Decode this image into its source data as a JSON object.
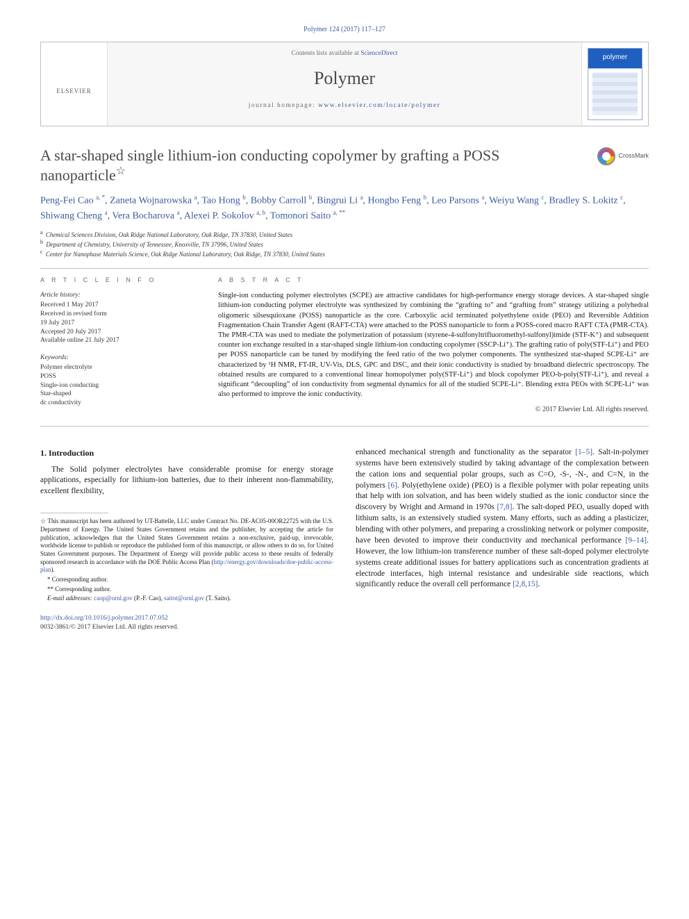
{
  "citation": "Polymer 124 (2017) 117–127",
  "masthead": {
    "contents_prefix": "Contents lists available at ",
    "contents_link": "ScienceDirect",
    "journal": "Polymer",
    "homepage_prefix": "journal homepage: ",
    "homepage_url": "www.elsevier.com/locate/polymer",
    "publisher_word": "ELSEVIER",
    "cover_word": "polymer"
  },
  "title": "A star-shaped single lithium-ion conducting copolymer by grafting a POSS nanoparticle",
  "title_star": "☆",
  "crossmark_label": "CrossMark",
  "authors_html": "Peng-Fei Cao <sup>a, *</sup>, Zaneta Wojnarowska <sup>a</sup>, Tao Hong <sup>b</sup>, Bobby Carroll <sup>b</sup>, Bingrui Li <sup>a</sup>, Hongbo Feng <sup>b</sup>, Leo Parsons <sup>a</sup>, Weiyu Wang <sup>c</sup>, Bradley S. Lokitz <sup>c</sup>, Shiwang Cheng <sup>a</sup>, Vera Bocharova <sup>a</sup>, Alexei P. Sokolov <sup>a, b</sup>, Tomonori Saito <sup>a, **</sup>",
  "affiliations": {
    "a": "Chemical Sciences Division, Oak Ridge National Laboratory, Oak Ridge, TN 37830, United States",
    "b": "Department of Chemistry, University of Tennessee, Knoxville, TN 37996, United States",
    "c": "Center for Nanophase Materials Science, Oak Ridge National Laboratory, Oak Ridge, TN 37830, United States"
  },
  "info_heading": "A R T I C L E   I N F O",
  "abs_heading": "A B S T R A C T",
  "history_label": "Article history:",
  "history": {
    "received": "Received 1 May 2017",
    "revised1": "Received in revised form",
    "revised2": "19 July 2017",
    "accepted": "Accepted 20 July 2017",
    "online": "Available online 21 July 2017"
  },
  "keywords_label": "Keywords:",
  "keywords": [
    "Polymer electrolyte",
    "POSS",
    "Single-ion conducting",
    "Star-shaped",
    "dc conductivity"
  ],
  "abstract": "Single-ion conducting polymer electrolytes (SCPE) are attractive candidates for high-performance energy storage devices. A star-shaped single lithium-ion conducting polymer electrolyte was synthesized by combining the “grafting to” and “grafting from” strategy utilizing a polyhedral oligomeric silsesquioxane (POSS) nanoparticle as the core. Carboxylic acid terminated polyethylene oxide (PEO) and Reversible Addition Fragmentation Chain Transfer Agent (RAFT-CTA) were attached to the POSS nanoparticle to form a POSS-cored macro RAFT CTA (PMR-CTA). The PMR-CTA was used to mediate the polymerization of potassium (styrene-4-sulfonyltrifluoromethyl-sulfonyl)imide (STF-K⁺) and subsequent counter ion exchange resulted in a star-shaped single lithium-ion conducting copolymer (SSCP-Li⁺). The grafting ratio of poly(STF-Li⁺) and PEO per POSS nanoparticle can be tuned by modifying the feed ratio of the two polymer components. The synthesized star-shaped SCPE-Li⁺ are characterized by ¹H NMR, FT-IR, UV-Vis, DLS, GPC and DSC, and their ionic conductivity is studied by broadband dielectric spectroscopy. The obtained results are compared to a conventional linear homopolymer poly(STF-Li⁺) and block copolymer PEO-b-poly(STF-Li⁺), and reveal a significant “decoupling” of ion conductivity from segmental dynamics for all of the studied SCPE-Li⁺. Blending extra PEOs with SCPE-Li⁺ was also performed to improve the ionic conductivity.",
  "copyright": "© 2017 Elsevier Ltd. All rights reserved.",
  "section1_head": "1. Introduction",
  "intro_left": "The Solid polymer electrolytes have considerable promise for energy storage applications, especially for lithium-ion batteries, due to their inherent non-flammability, excellent flexibility,",
  "intro_right_a": "enhanced mechanical strength and functionality as the separator ",
  "intro_right_ref1": "[1–5]",
  "intro_right_b": ". Salt-in-polymer systems have been extensively studied by taking advantage of the complexation between the cation ions and sequential polar groups, such as C=O, -S-, -N-, and C=N, in the polymers ",
  "intro_right_ref2": "[6]",
  "intro_right_c": ". Poly(ethylene oxide) (PEO) is a flexible polymer with polar repeating units that help with ion solvation, and has been widely studied as the ionic conductor since the discovery by Wright and Armand in 1970s ",
  "intro_right_ref3": "[7,8]",
  "intro_right_d": ". The salt-doped PEO, usually doped with lithium salts, is an extensively studied system. Many efforts, such as adding a plasticizer, blending with other polymers, and preparing a crosslinking network or polymer composite, have been devoted to improve their conductivity and mechanical performance ",
  "intro_right_ref4": "[9–14]",
  "intro_right_e": ". However, the low lithium-ion transference number of these salt-doped polymer electrolyte systems create additional issues for battery applications such as concentration gradients at electrode interfaces, high internal resistance and undesirable side reactions, which significantly reduce the overall cell performance ",
  "intro_right_ref5": "[2,8,15]",
  "intro_right_f": ".",
  "footnote_star": "☆ This manuscript has been authored by UT-Battelle, LLC under Contract No. DE-AC05-00OR22725 with the U.S. Department of Energy. The United States Government retains and the publisher, by accepting the article for publication, acknowledges that the United States Government retains a non-exclusive, paid-up, irrevocable, worldwide license to publish or reproduce the published form of this manuscript, or allow others to do so, for United States Government purposes. The Department of Energy will provide public access to these results of federally sponsored research in accordance with the DOE Public Access Plan (",
  "footnote_star_link": "http://energy.gov/downloads/doe-public-access-plan",
  "footnote_star_tail": ").",
  "corr1": "* Corresponding author.",
  "corr2": "** Corresponding author.",
  "emails_label": "E-mail addresses: ",
  "email1": "caop@ornl.gov",
  "email1_who": " (P.-F. Cao), ",
  "email2": "saitot@ornl.gov",
  "email2_who": " (T. Saito).",
  "doi_url": "http://dx.doi.org/10.1016/j.polymer.2017.07.052",
  "doi_line2": "0032-3861/© 2017 Elsevier Ltd. All rights reserved.",
  "colors": {
    "link": "#3a5ba0",
    "rule": "#bfbfbf",
    "text": "#1a1a1a",
    "muted": "#6a6a6a",
    "elsevier_orange": "#f58220",
    "cover_blue": "#1f5fbf"
  }
}
